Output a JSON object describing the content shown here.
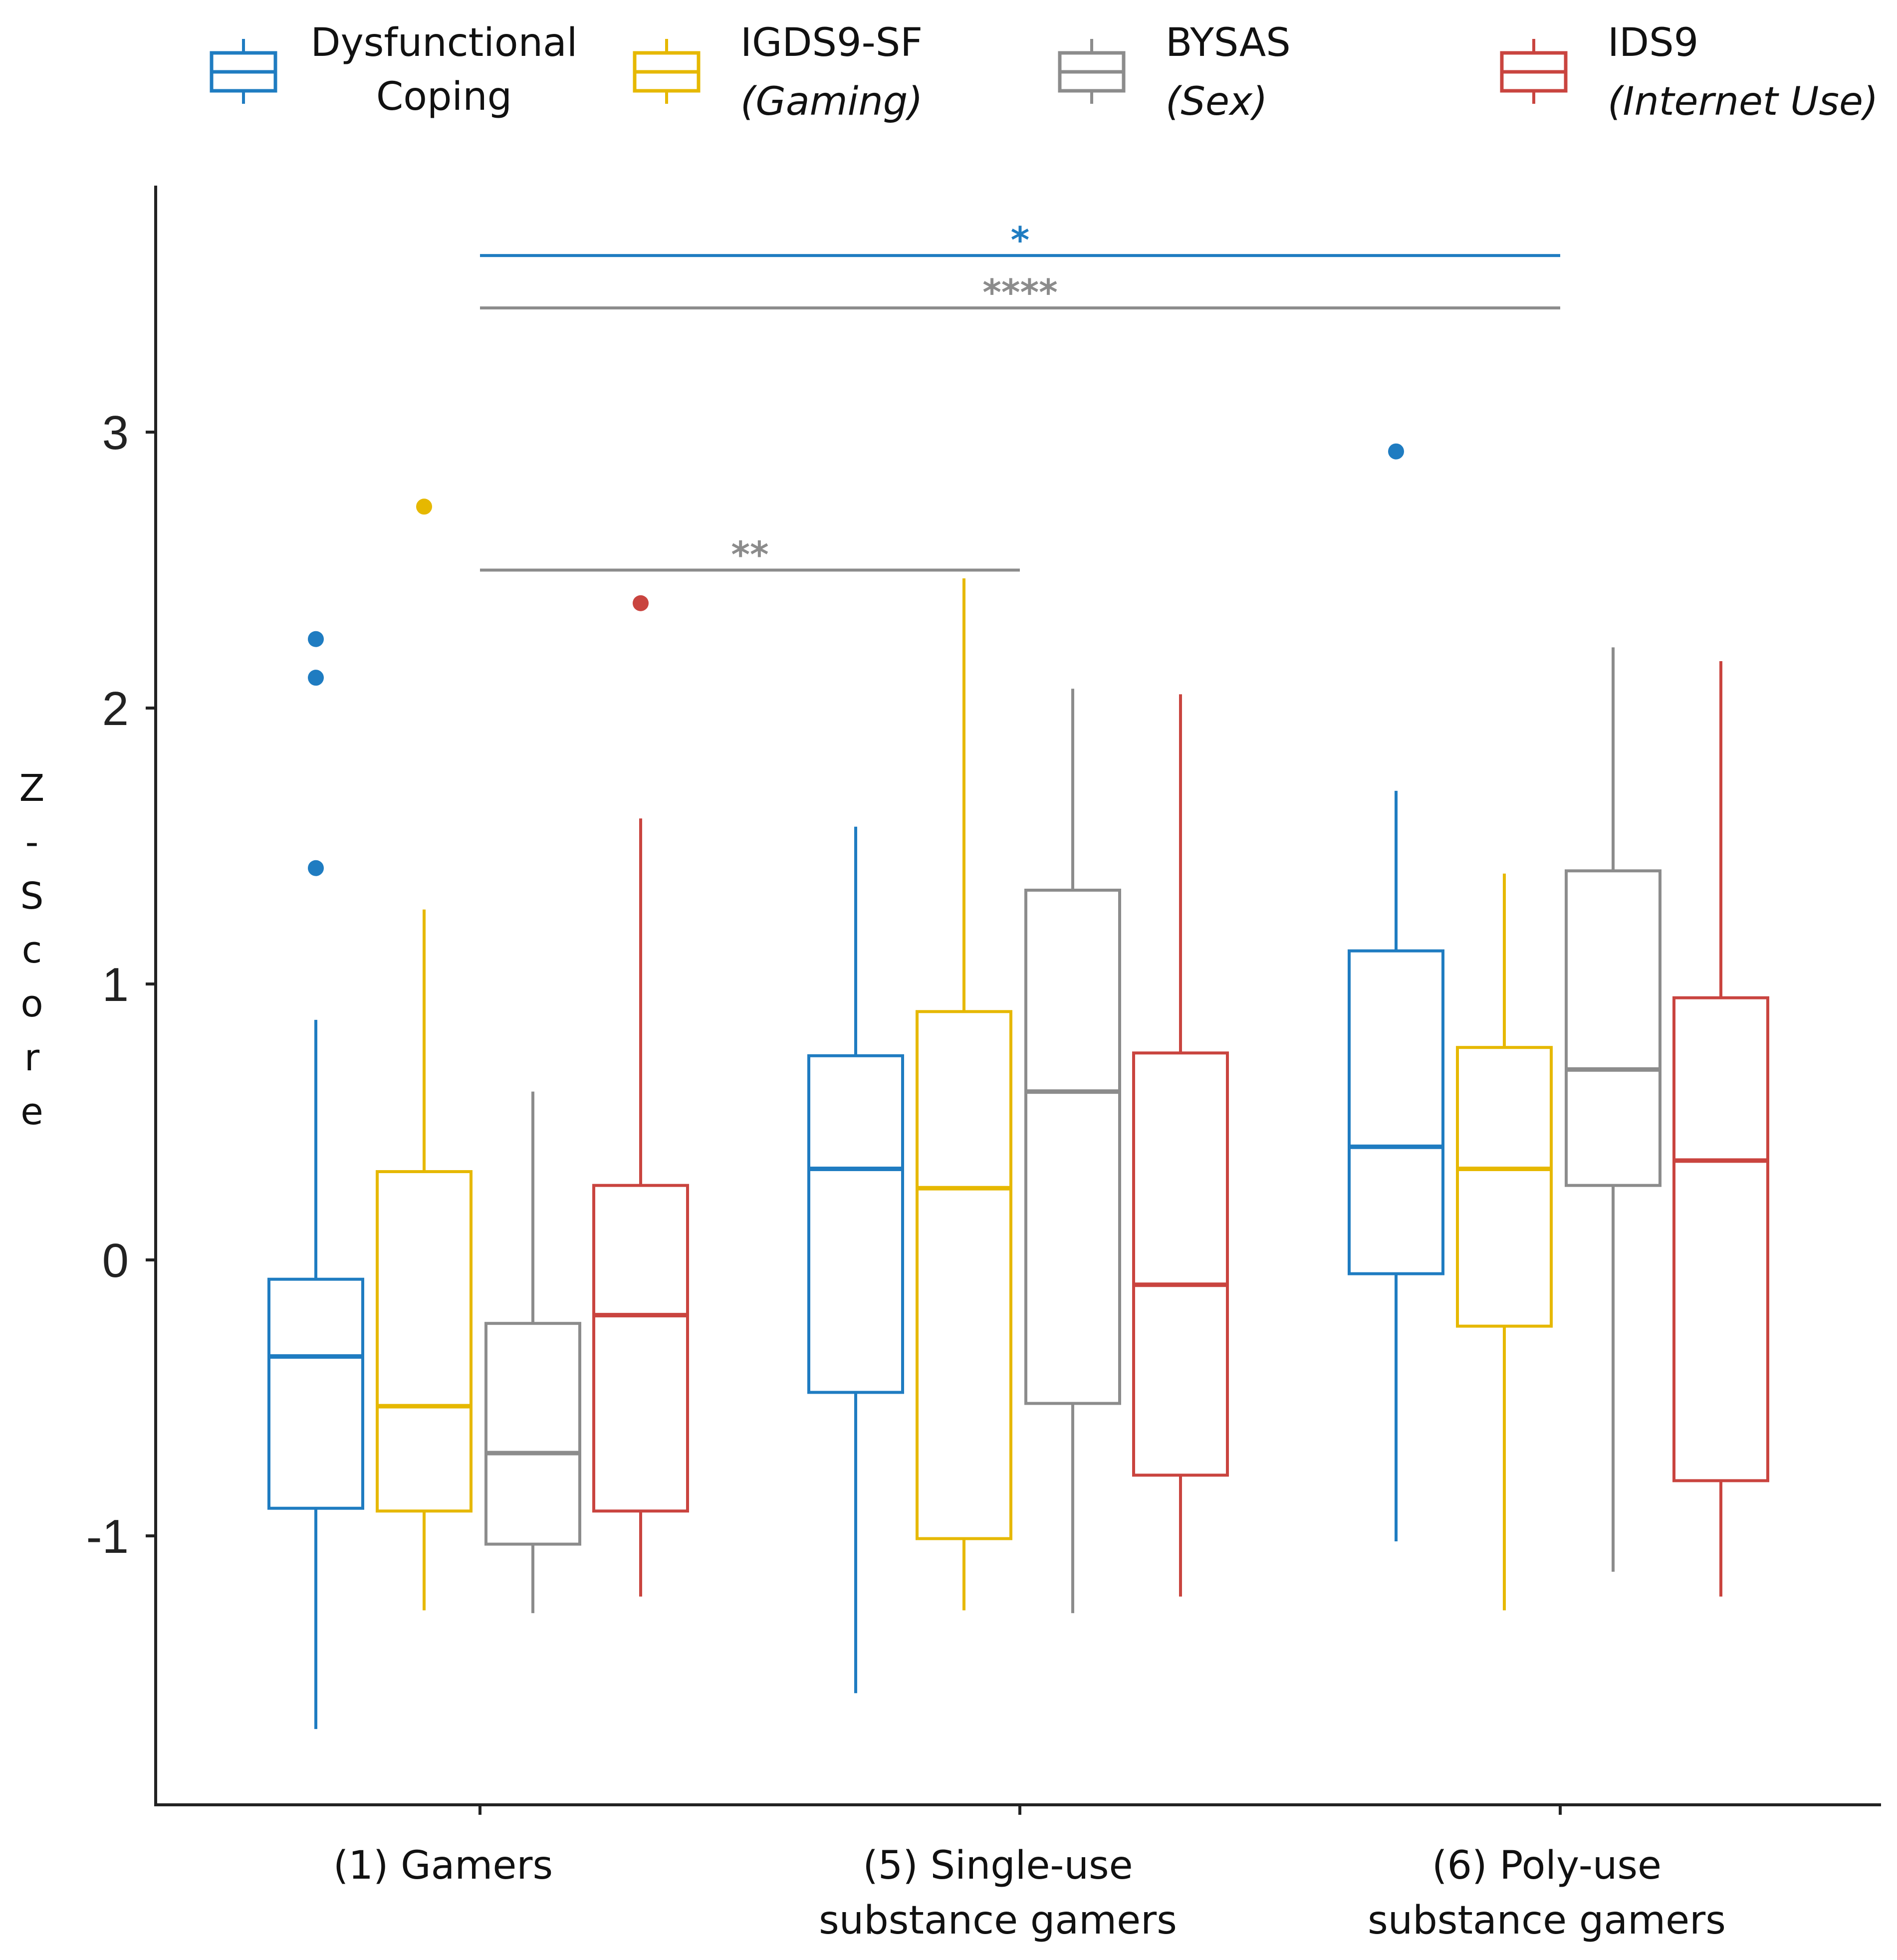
{
  "chart_data": {
    "type": "box",
    "title": "",
    "xlabel": "",
    "ylabel": "Z-Score",
    "ylim": [
      -1.95,
      3.9
    ],
    "yticks": [
      3,
      2,
      1,
      0,
      -1
    ],
    "ytick_labels": [
      "3",
      "2",
      "1",
      "0",
      "-1"
    ],
    "categories": [
      {
        "lines": [
          "(1) Gamers"
        ]
      },
      {
        "lines": [
          "(5) Single-use",
          "substance gamers"
        ]
      },
      {
        "lines": [
          "(6) Poly-use",
          "substance gamers"
        ]
      }
    ],
    "series": [
      {
        "key": "dysfunctional-coping",
        "legend_lines": [
          "Dysfunctional",
          "Coping"
        ],
        "italic_second_line": false,
        "color": "#1f7cc1",
        "boxes": [
          {
            "whisker_low": -1.7,
            "q1": -0.9,
            "median": -0.35,
            "q3": -0.07,
            "whisker_high": 0.87,
            "outliers": [
              1.42,
              2.11,
              2.25
            ]
          },
          {
            "whisker_low": -1.57,
            "q1": -0.48,
            "median": 0.33,
            "q3": 0.74,
            "whisker_high": 1.57,
            "outliers": []
          },
          {
            "whisker_low": -1.02,
            "q1": -0.05,
            "median": 0.41,
            "q3": 1.12,
            "whisker_high": 1.7,
            "outliers": [
              2.93
            ]
          }
        ]
      },
      {
        "key": "igds9-sf",
        "legend_lines": [
          "IGDS9-SF",
          "(Gaming)"
        ],
        "italic_second_line": true,
        "color": "#e6b800",
        "boxes": [
          {
            "whisker_low": -1.27,
            "q1": -0.91,
            "median": -0.53,
            "q3": 0.32,
            "whisker_high": 1.27,
            "outliers": [
              2.73
            ]
          },
          {
            "whisker_low": -1.27,
            "q1": -1.01,
            "median": 0.26,
            "q3": 0.9,
            "whisker_high": 2.47,
            "outliers": []
          },
          {
            "whisker_low": -1.27,
            "q1": -0.24,
            "median": 0.33,
            "q3": 0.77,
            "whisker_high": 1.4,
            "outliers": []
          }
        ]
      },
      {
        "key": "bysas",
        "legend_lines": [
          "BYSAS",
          "(Sex)"
        ],
        "italic_second_line": true,
        "color": "#8c8c8c",
        "boxes": [
          {
            "whisker_low": -1.28,
            "q1": -1.03,
            "median": -0.7,
            "q3": -0.23,
            "whisker_high": 0.61,
            "outliers": []
          },
          {
            "whisker_low": -1.28,
            "q1": -0.52,
            "median": 0.61,
            "q3": 1.34,
            "whisker_high": 2.07,
            "outliers": []
          },
          {
            "whisker_low": -1.13,
            "q1": 0.27,
            "median": 0.69,
            "q3": 1.41,
            "whisker_high": 2.22,
            "outliers": []
          }
        ]
      },
      {
        "key": "ids9",
        "legend_lines": [
          "IDS9",
          "(Internet Use)"
        ],
        "italic_second_line": true,
        "color": "#c9443f",
        "boxes": [
          {
            "whisker_low": -1.22,
            "q1": -0.91,
            "median": -0.2,
            "q3": 0.27,
            "whisker_high": 1.6,
            "outliers": [
              2.38
            ]
          },
          {
            "whisker_low": -1.22,
            "q1": -0.78,
            "median": -0.09,
            "q3": 0.75,
            "whisker_high": 2.05,
            "outliers": []
          },
          {
            "whisker_low": -1.22,
            "q1": -0.8,
            "median": 0.36,
            "q3": 0.95,
            "whisker_high": 2.17,
            "outliers": []
          }
        ]
      }
    ],
    "significance": [
      {
        "from_category": 0,
        "to_category": 2,
        "y": 3.64,
        "label": "*",
        "color": "#1f7cc1"
      },
      {
        "from_category": 0,
        "to_category": 2,
        "y": 3.45,
        "label": "****",
        "color": "#8c8c8c"
      },
      {
        "from_category": 0,
        "to_category": 1,
        "y": 2.5,
        "label": "**",
        "color": "#8c8c8c"
      }
    ]
  }
}
